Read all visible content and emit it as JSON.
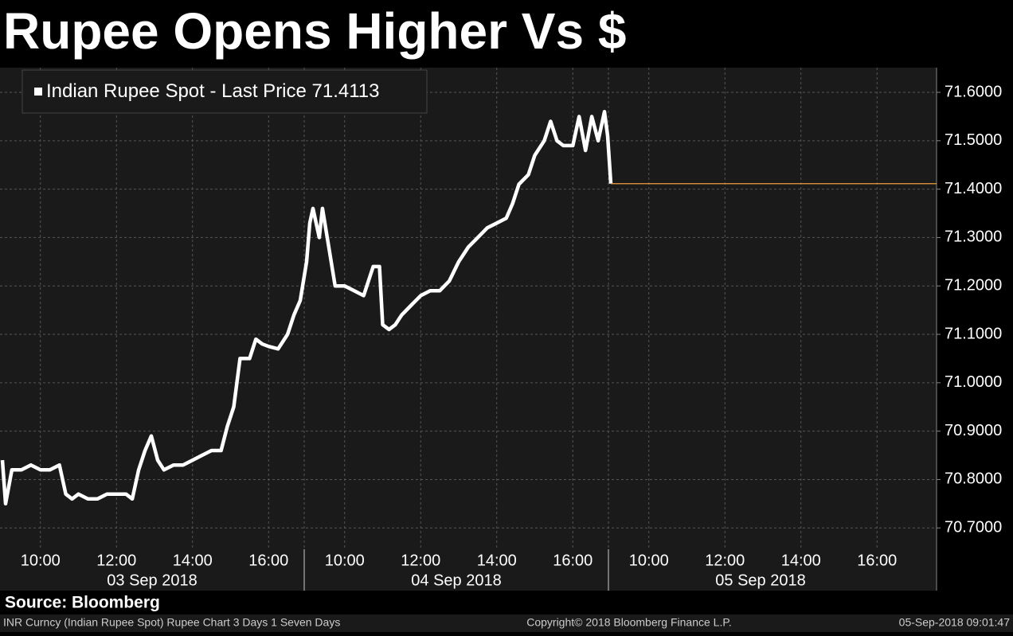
{
  "header": {
    "title": "Rupee Opens Higher Vs $"
  },
  "chart_data": {
    "type": "line",
    "last_price": 71.4113,
    "last_price_color": "#f0a040",
    "days": [
      "03 Sep 2018",
      "04 Sep 2018",
      "05 Sep 2018"
    ],
    "xlim": [
      "09:00",
      "17:00"
    ],
    "xticks": [
      "10:00",
      "12:00",
      "14:00",
      "16:00"
    ],
    "ylim": [
      70.656,
      71.651
    ],
    "yticks": [
      {
        "value": 70.7,
        "label": "70.7000"
      },
      {
        "value": 70.8,
        "label": "70.8000"
      },
      {
        "value": 70.9,
        "label": "70.9000"
      },
      {
        "value": 71.0,
        "label": "71.0000"
      },
      {
        "value": 71.1,
        "label": "71.1000"
      },
      {
        "value": 71.2,
        "label": "71.2000"
      },
      {
        "value": 71.3,
        "label": "71.3000"
      },
      {
        "value": 71.4,
        "label": "71.4000"
      },
      {
        "value": 71.5,
        "label": "71.5000"
      },
      {
        "value": 71.6,
        "label": "71.6000"
      }
    ],
    "grid": true,
    "x": [
      "03 Sep 2018 09:00",
      "03 Sep 2018 09:05",
      "03 Sep 2018 09:15",
      "03 Sep 2018 09:30",
      "03 Sep 2018 09:45",
      "03 Sep 2018 10:00",
      "03 Sep 2018 10:15",
      "03 Sep 2018 10:30",
      "03 Sep 2018 10:40",
      "03 Sep 2018 10:50",
      "03 Sep 2018 11:00",
      "03 Sep 2018 11:15",
      "03 Sep 2018 11:30",
      "03 Sep 2018 11:45",
      "03 Sep 2018 12:00",
      "03 Sep 2018 12:15",
      "03 Sep 2018 12:25",
      "03 Sep 2018 12:35",
      "03 Sep 2018 12:45",
      "03 Sep 2018 12:55",
      "03 Sep 2018 13:05",
      "03 Sep 2018 13:15",
      "03 Sep 2018 13:30",
      "03 Sep 2018 13:45",
      "03 Sep 2018 14:00",
      "03 Sep 2018 14:15",
      "03 Sep 2018 14:30",
      "03 Sep 2018 14:45",
      "03 Sep 2018 14:55",
      "03 Sep 2018 15:05",
      "03 Sep 2018 15:15",
      "03 Sep 2018 15:30",
      "03 Sep 2018 15:40",
      "03 Sep 2018 15:50",
      "03 Sep 2018 16:00",
      "03 Sep 2018 16:15",
      "03 Sep 2018 16:30",
      "03 Sep 2018 16:40",
      "03 Sep 2018 16:50",
      "04 Sep 2018 09:00",
      "04 Sep 2018 09:05",
      "04 Sep 2018 09:10",
      "04 Sep 2018 09:20",
      "04 Sep 2018 09:25",
      "04 Sep 2018 09:35",
      "04 Sep 2018 09:45",
      "04 Sep 2018 10:00",
      "04 Sep 2018 10:15",
      "04 Sep 2018 10:30",
      "04 Sep 2018 10:45",
      "04 Sep 2018 10:55",
      "04 Sep 2018 11:00",
      "04 Sep 2018 11:10",
      "04 Sep 2018 11:20",
      "04 Sep 2018 11:30",
      "04 Sep 2018 11:45",
      "04 Sep 2018 12:00",
      "04 Sep 2018 12:15",
      "04 Sep 2018 12:30",
      "04 Sep 2018 12:45",
      "04 Sep 2018 13:00",
      "04 Sep 2018 13:15",
      "04 Sep 2018 13:30",
      "04 Sep 2018 13:45",
      "04 Sep 2018 14:00",
      "04 Sep 2018 14:15",
      "04 Sep 2018 14:25",
      "04 Sep 2018 14:35",
      "04 Sep 2018 14:50",
      "04 Sep 2018 15:00",
      "04 Sep 2018 15:15",
      "04 Sep 2018 15:25",
      "04 Sep 2018 15:35",
      "04 Sep 2018 15:45",
      "04 Sep 2018 16:00",
      "04 Sep 2018 16:10",
      "04 Sep 2018 16:20",
      "04 Sep 2018 16:30",
      "04 Sep 2018 16:40",
      "04 Sep 2018 16:50",
      "04 Sep 2018 16:55",
      "05 Sep 2018 09:00"
    ],
    "series": [
      {
        "name": "Indian Rupee Spot - Last Price",
        "color": "#ffffff",
        "values": [
          70.84,
          70.75,
          70.82,
          70.82,
          70.83,
          70.82,
          70.82,
          70.83,
          70.77,
          70.76,
          70.77,
          70.76,
          70.76,
          70.77,
          70.77,
          70.77,
          70.76,
          70.82,
          70.86,
          70.89,
          70.84,
          70.82,
          70.83,
          70.83,
          70.84,
          70.85,
          70.86,
          70.86,
          70.91,
          70.95,
          71.05,
          71.05,
          71.09,
          71.08,
          71.075,
          71.07,
          71.1,
          71.14,
          71.17,
          71.25,
          71.33,
          71.36,
          71.3,
          71.36,
          71.28,
          71.2,
          71.2,
          71.19,
          71.18,
          71.24,
          71.24,
          71.12,
          71.11,
          71.12,
          71.14,
          71.16,
          71.18,
          71.19,
          71.19,
          71.21,
          71.25,
          71.28,
          71.3,
          71.32,
          71.33,
          71.34,
          71.37,
          71.41,
          71.43,
          71.47,
          71.5,
          71.54,
          71.5,
          71.49,
          71.49,
          71.55,
          71.48,
          71.55,
          71.5,
          71.56,
          71.51,
          71.4113
        ]
      }
    ]
  },
  "footer": {
    "source": "Source: Bloomberg",
    "left": "INR Curncy (Indian Rupee Spot) Rupee Chart 3 Days 1 Seven Days",
    "center": "Copyright© 2018 Bloomberg Finance L.P.",
    "right": "05-Sep-2018 09:01:47"
  }
}
